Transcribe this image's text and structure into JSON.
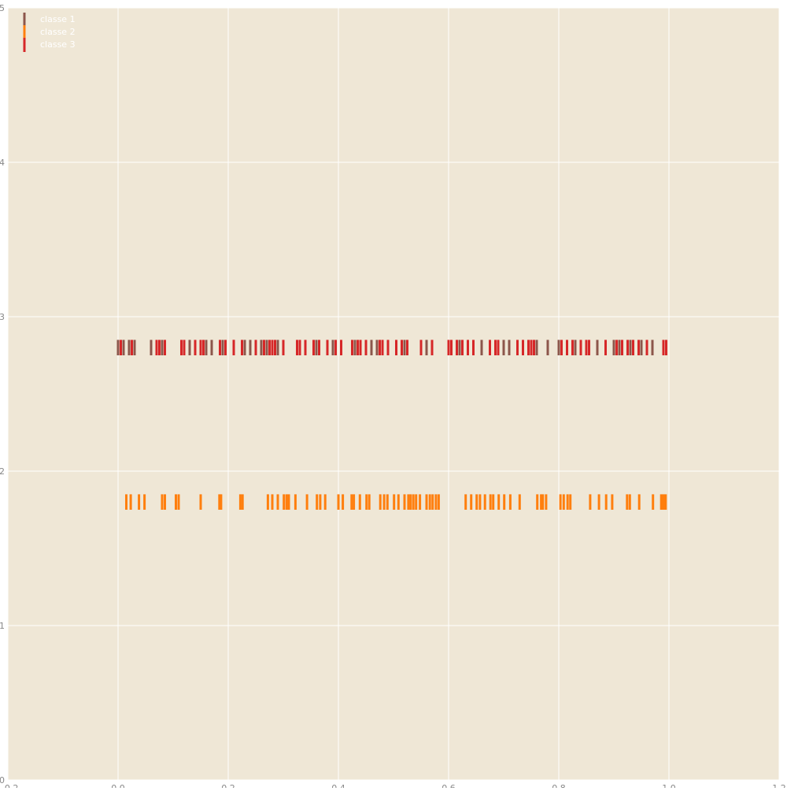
{
  "chart_data": {
    "type": "eventplot",
    "title": "",
    "xlabel": "",
    "ylabel": "",
    "xlim": [
      -0.2,
      1.2
    ],
    "ylim": [
      0,
      5
    ],
    "x_ticks": [
      -0.2,
      0.0,
      0.2,
      0.4,
      0.6,
      0.8,
      1.0,
      1.2
    ],
    "x_tick_labels": [
      "−0.2",
      "0.0",
      "0.2",
      "0.4",
      "0.6",
      "0.8",
      "1.0",
      "1.2"
    ],
    "y_ticks": [
      0,
      1,
      2,
      3,
      4,
      5
    ],
    "y_tick_labels": [
      "0",
      "1",
      "2",
      "3",
      "4",
      "5"
    ],
    "grid": true,
    "legend_position": "top-left",
    "background": "#efe7d6",
    "series": [
      {
        "name": "classe 1",
        "color": "#8c564b",
        "lineoffset": 2.8,
        "linelength": 0.1,
        "positions": [
          0.0,
          0.01,
          0.02,
          0.03,
          0.06,
          0.08,
          0.13,
          0.16,
          0.17,
          0.19,
          0.21,
          0.23,
          0.24,
          0.26,
          0.27,
          0.29,
          0.36,
          0.39,
          0.43,
          0.46,
          0.47,
          0.52,
          0.56,
          0.62,
          0.66,
          0.7,
          0.71,
          0.76,
          0.78,
          0.8,
          0.83,
          0.87,
          0.9,
          0.91,
          0.93,
          0.95,
          0.97
        ]
      },
      {
        "name": "classe 2",
        "color": "#ff7f0e",
        "lineoffset": 1.8,
        "linelength": 0.1,
        "positions": [
          0.015,
          0.023,
          0.038,
          0.048,
          0.08,
          0.085,
          0.105,
          0.11,
          0.15,
          0.184,
          0.187,
          0.222,
          0.226,
          0.272,
          0.28,
          0.29,
          0.301,
          0.306,
          0.31,
          0.322,
          0.343,
          0.361,
          0.367,
          0.376,
          0.4,
          0.408,
          0.424,
          0.428,
          0.439,
          0.451,
          0.456,
          0.476,
          0.483,
          0.489,
          0.501,
          0.509,
          0.52,
          0.527,
          0.531,
          0.536,
          0.541,
          0.548,
          0.56,
          0.566,
          0.571,
          0.577,
          0.582,
          0.631,
          0.641,
          0.651,
          0.657,
          0.666,
          0.676,
          0.681,
          0.691,
          0.701,
          0.712,
          0.729,
          0.761,
          0.768,
          0.771,
          0.777,
          0.803,
          0.809,
          0.816,
          0.821,
          0.857,
          0.873,
          0.886,
          0.897,
          0.924,
          0.929,
          0.946,
          0.971,
          0.986,
          0.99,
          0.994
        ]
      },
      {
        "name": "classe 3",
        "color": "#d62728",
        "lineoffset": 2.8,
        "linelength": 0.1,
        "positions": [
          0.005,
          0.025,
          0.07,
          0.075,
          0.085,
          0.115,
          0.12,
          0.14,
          0.15,
          0.155,
          0.185,
          0.195,
          0.21,
          0.225,
          0.25,
          0.265,
          0.275,
          0.28,
          0.285,
          0.3,
          0.325,
          0.33,
          0.34,
          0.355,
          0.365,
          0.38,
          0.395,
          0.405,
          0.425,
          0.435,
          0.44,
          0.45,
          0.475,
          0.48,
          0.49,
          0.505,
          0.515,
          0.525,
          0.55,
          0.57,
          0.6,
          0.605,
          0.615,
          0.625,
          0.635,
          0.645,
          0.675,
          0.685,
          0.69,
          0.725,
          0.735,
          0.745,
          0.75,
          0.755,
          0.805,
          0.815,
          0.825,
          0.84,
          0.85,
          0.855,
          0.885,
          0.905,
          0.915,
          0.925,
          0.935,
          0.945,
          0.96,
          0.99,
          0.995
        ]
      }
    ]
  }
}
